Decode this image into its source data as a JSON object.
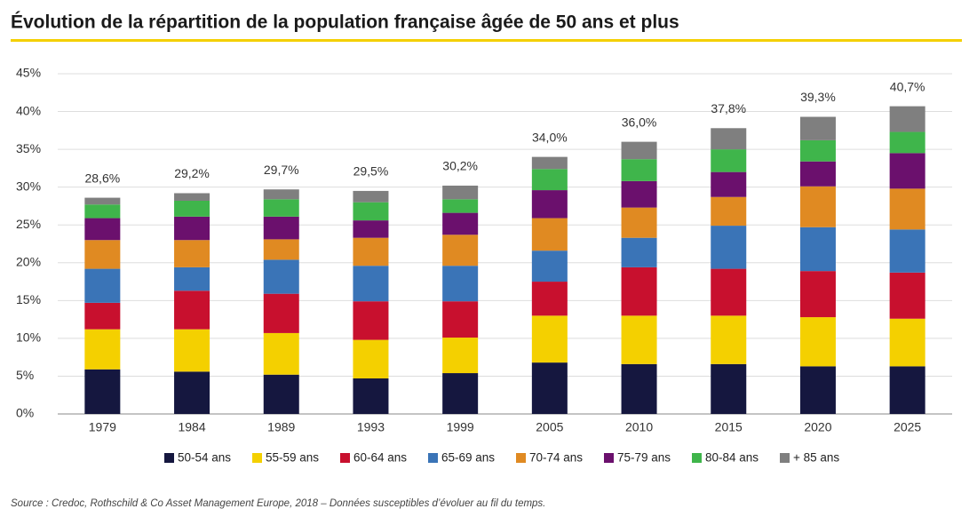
{
  "chart_data": {
    "type": "stacked-bar",
    "title": "Évolution de la répartition de la population française âgée de 50 ans et plus",
    "source": "Source : Credoc, Rothschild & Co Asset Management Europe, 2018 – Données susceptibles d’évoluer au fil du temps.",
    "categories": [
      "1979",
      "1984",
      "1989",
      "1993",
      "1999",
      "2005",
      "2010",
      "2015",
      "2020",
      "2025"
    ],
    "series": [
      {
        "name": "50-54 ans",
        "color": "#15173f",
        "values": [
          5.9,
          5.6,
          5.2,
          4.7,
          5.4,
          6.8,
          6.6,
          6.6,
          6.3,
          6.3
        ]
      },
      {
        "name": "55-59 ans",
        "color": "#f4d000",
        "values": [
          5.3,
          5.6,
          5.5,
          5.1,
          4.7,
          6.2,
          6.4,
          6.4,
          6.5,
          6.3
        ]
      },
      {
        "name": "60-64 ans",
        "color": "#c8102e",
        "values": [
          3.5,
          5.1,
          5.2,
          5.1,
          4.8,
          4.5,
          6.4,
          6.2,
          6.1,
          6.1
        ]
      },
      {
        "name": "65-69 ans",
        "color": "#3a74b7",
        "values": [
          4.5,
          3.1,
          4.5,
          4.7,
          4.7,
          4.1,
          3.9,
          5.7,
          5.8,
          5.7
        ]
      },
      {
        "name": "70-74 ans",
        "color": "#e08a22",
        "values": [
          3.8,
          3.6,
          2.7,
          3.7,
          4.1,
          4.3,
          4.0,
          3.8,
          5.4,
          5.4
        ]
      },
      {
        "name": "75-79 ans",
        "color": "#6b106d",
        "values": [
          2.9,
          3.1,
          3.0,
          2.3,
          2.9,
          3.7,
          3.5,
          3.3,
          3.3,
          4.7
        ]
      },
      {
        "name": "80-84 ans",
        "color": "#3fb54b",
        "values": [
          1.8,
          2.1,
          2.3,
          2.4,
          1.8,
          2.8,
          2.9,
          3.0,
          2.8,
          2.8
        ]
      },
      {
        "name": "+ 85 ans",
        "color": "#7f7f7f",
        "values": [
          0.9,
          1.0,
          1.3,
          1.5,
          1.8,
          1.6,
          2.3,
          2.8,
          3.1,
          3.4
        ]
      }
    ],
    "totals": [
      28.6,
      29.2,
      29.7,
      29.5,
      30.2,
      34.0,
      36.0,
      37.8,
      39.3,
      40.7
    ],
    "total_labels": [
      "28,6%",
      "29,2%",
      "29,7%",
      "29,5%",
      "30,2%",
      "34,0%",
      "36,0%",
      "37,8%",
      "39,3%",
      "40,7%"
    ],
    "ylim": [
      0,
      45
    ],
    "yticks": [
      {
        "value": 0,
        "label": "0%"
      },
      {
        "value": 5,
        "label": "5%"
      },
      {
        "value": 10,
        "label": "10%"
      },
      {
        "value": 15,
        "label": "15%"
      },
      {
        "value": 20,
        "label": "20%"
      },
      {
        "value": 25,
        "label": "25%"
      },
      {
        "value": 30,
        "label": "30%"
      },
      {
        "value": 35,
        "label": "35%"
      },
      {
        "value": 40,
        "label": "40%"
      },
      {
        "value": 45,
        "label": "45%"
      }
    ],
    "grid": true
  }
}
